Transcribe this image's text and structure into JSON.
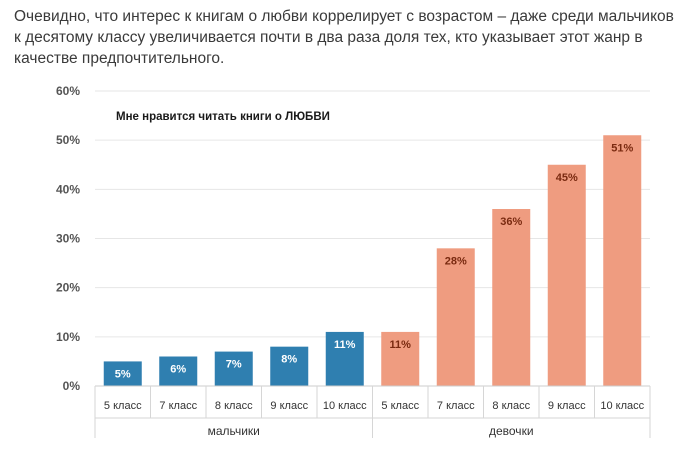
{
  "intro_text": "Очевидно, что интерес к книгам о любви коррелирует с возрастом – даже среди мальчиков к десятому классу увеличивается почти в два раза доля тех, кто указывает этот жанр в качестве предпочтительного.",
  "chart_data": {
    "type": "bar",
    "title": "Мне нравится читать книги о ЛЮБВИ",
    "ylim": [
      0,
      60
    ],
    "yticks": [
      "0%",
      "10%",
      "20%",
      "30%",
      "40%",
      "50%",
      "60%"
    ],
    "y_tick_values": [
      0,
      10,
      20,
      30,
      40,
      50,
      60
    ],
    "groups": [
      {
        "name": "мальчики",
        "color": "#2f7fb0",
        "label_color": "#ffffff",
        "categories": [
          "5 класс",
          "7 класс",
          "8 класс",
          "9 класс",
          "10 класс"
        ],
        "values": [
          5,
          6,
          7,
          8,
          11
        ],
        "labels": [
          "5%",
          "6%",
          "7%",
          "8%",
          "11%"
        ]
      },
      {
        "name": "девочки",
        "color": "#ef9c80",
        "label_color": "#7a2a10",
        "categories": [
          "5 класс",
          "7 класс",
          "8 класс",
          "9 класс",
          "10 класс"
        ],
        "values": [
          11,
          28,
          36,
          45,
          51
        ],
        "labels": [
          "11%",
          "28%",
          "36%",
          "45%",
          "51%"
        ]
      }
    ]
  }
}
